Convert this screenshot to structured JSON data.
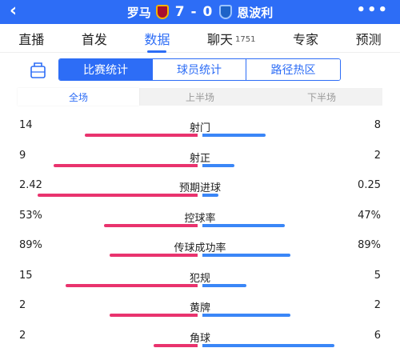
{
  "header": {
    "back_icon": "‹",
    "home_team": "罗马",
    "score": "7 - 0",
    "away_team": "恩波利",
    "more_icon": "•••"
  },
  "tabs": [
    {
      "label": "直播",
      "count": ""
    },
    {
      "label": "首发",
      "count": ""
    },
    {
      "label": "数据",
      "count": ""
    },
    {
      "label": "聊天",
      "count": "1751"
    },
    {
      "label": "专家",
      "count": ""
    },
    {
      "label": "预测",
      "count": ""
    }
  ],
  "active_tab": "数据",
  "segments": [
    "比赛统计",
    "球员统计",
    "路径热区"
  ],
  "active_segment": "比赛统计",
  "periods": [
    "全场",
    "上半场",
    "下半场"
  ],
  "active_period": "全场",
  "colors": {
    "accent": "#2d6df6",
    "home": "#e9336e",
    "away": "#3a86f7"
  },
  "stats": [
    {
      "label": "射门",
      "home": "14",
      "away": "8",
      "home_share": 0.64,
      "away_share": 0.36
    },
    {
      "label": "射正",
      "home": "9",
      "away": "2",
      "home_share": 0.82,
      "away_share": 0.18
    },
    {
      "label": "预期进球",
      "home": "2.42",
      "away": "0.25",
      "home_share": 0.91,
      "away_share": 0.09
    },
    {
      "label": "控球率",
      "home": "53%",
      "away": "47%",
      "home_share": 0.53,
      "away_share": 0.47
    },
    {
      "label": "传球成功率",
      "home": "89%",
      "away": "89%",
      "home_share": 0.5,
      "away_share": 0.5
    },
    {
      "label": "犯规",
      "home": "15",
      "away": "5",
      "home_share": 0.75,
      "away_share": 0.25
    },
    {
      "label": "黄牌",
      "home": "2",
      "away": "2",
      "home_share": 0.5,
      "away_share": 0.5
    },
    {
      "label": "角球",
      "home": "2",
      "away": "6",
      "home_share": 0.25,
      "away_share": 0.75
    }
  ]
}
